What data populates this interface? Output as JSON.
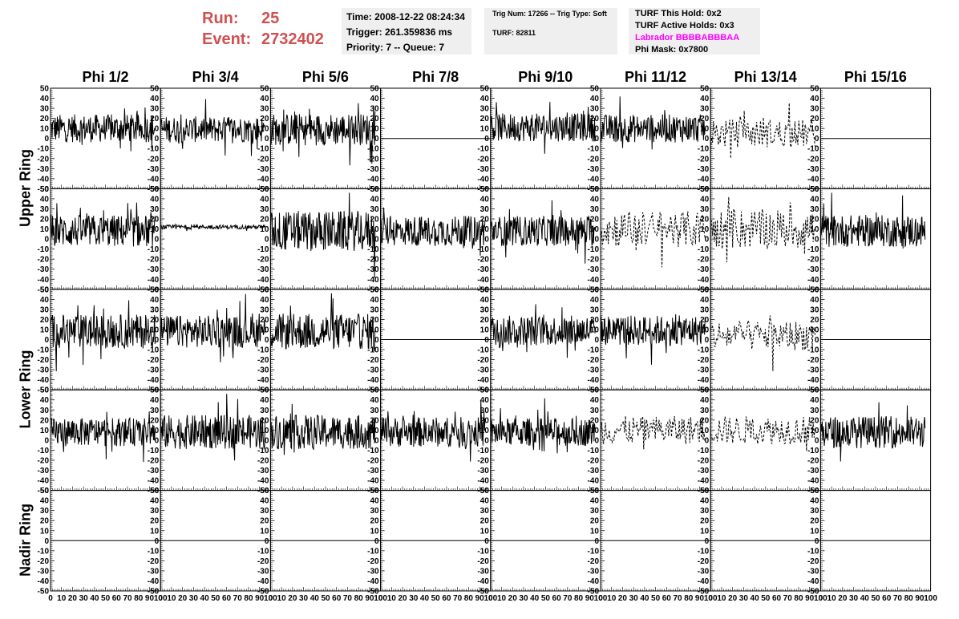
{
  "header": {
    "run_label": "Run:",
    "run_value": "25",
    "event_label": "Event:",
    "event_value": "2732402",
    "time": "Time: 2008-12-22 08:24:34",
    "trigger": "Trigger: 261.359836 ms",
    "priority": "Priority: 7 -- Queue: 7",
    "trig_num": "Trig Num: 17266 -- Trig Type: Soft",
    "turf": "TURF: 82811",
    "turf_this_hold": "TURF This Hold: 0x2",
    "turf_active_holds": "TURF Active Holds: 0x3",
    "labrador": "Labrador BBBBABBBAA",
    "phi_mask": "Phi Mask: 0x7800",
    "labrador_color": "#ff00ff",
    "run_color": "#d05050"
  },
  "chart_data": {
    "type": "line",
    "columns": [
      "Phi 1/2",
      "Phi 3/4",
      "Phi 5/6",
      "Phi 7/8",
      "Phi 9/10",
      "Phi 11/12",
      "Phi 13/14",
      "Phi 15/16"
    ],
    "row_groups": [
      {
        "label": "Upper Ring",
        "rows": [
          0,
          1
        ]
      },
      {
        "label": "Lower Ring",
        "rows": [
          2,
          3
        ]
      },
      {
        "label": "Nadir Ring",
        "rows": [
          4
        ]
      }
    ],
    "ylim": [
      -50,
      50
    ],
    "y_ticks": [
      "50",
      "40",
      "30",
      "20",
      "10",
      "0",
      "-10",
      "-20",
      "-30",
      "-40",
      "-50"
    ],
    "xlim": [
      0,
      100
    ],
    "x_ticks": [
      "0",
      "10",
      "20",
      "30",
      "40",
      "50",
      "60",
      "70",
      "80",
      "90",
      "100"
    ],
    "panels": [
      [
        {
          "style": "solid",
          "amp": 14,
          "offset": 10
        },
        {
          "style": "solid",
          "amp": 13,
          "offset": 9
        },
        {
          "style": "solid",
          "amp": 16,
          "offset": 9
        },
        {
          "style": "flat",
          "amp": 0,
          "offset": 0
        },
        {
          "style": "solid",
          "amp": 14,
          "offset": 11
        },
        {
          "style": "solid",
          "amp": 14,
          "offset": 10
        },
        {
          "style": "dashed",
          "amp": 14,
          "offset": 5
        },
        {
          "style": "flat",
          "amp": 0,
          "offset": 0
        }
      ],
      [
        {
          "style": "solid",
          "amp": 16,
          "offset": 8
        },
        {
          "style": "quiet",
          "amp": 2,
          "offset": 12
        },
        {
          "style": "solid",
          "amp": 20,
          "offset": 8
        },
        {
          "style": "solid",
          "amp": 15,
          "offset": 8
        },
        {
          "style": "solid",
          "amp": 15,
          "offset": 8
        },
        {
          "style": "dashed",
          "amp": 18,
          "offset": 10
        },
        {
          "style": "dashed",
          "amp": 20,
          "offset": 10
        },
        {
          "style": "solid",
          "amp": 16,
          "offset": 8
        }
      ],
      [
        {
          "style": "solid",
          "amp": 17,
          "offset": 8
        },
        {
          "style": "solid",
          "amp": 16,
          "offset": 8
        },
        {
          "style": "solid",
          "amp": 18,
          "offset": 8
        },
        {
          "style": "flat",
          "amp": 0,
          "offset": 0
        },
        {
          "style": "solid",
          "amp": 15,
          "offset": 9
        },
        {
          "style": "solid",
          "amp": 15,
          "offset": 9
        },
        {
          "style": "dashed",
          "amp": 15,
          "offset": 4
        },
        {
          "style": "flat",
          "amp": 0,
          "offset": 0
        }
      ],
      [
        {
          "style": "solid",
          "amp": 14,
          "offset": 8
        },
        {
          "style": "solid",
          "amp": 17,
          "offset": 8
        },
        {
          "style": "solid",
          "amp": 17,
          "offset": 8
        },
        {
          "style": "solid",
          "amp": 15,
          "offset": 8
        },
        {
          "style": "solid",
          "amp": 14,
          "offset": 8
        },
        {
          "style": "dashed",
          "amp": 14,
          "offset": 10
        },
        {
          "style": "dashed",
          "amp": 14,
          "offset": 10
        },
        {
          "style": "solid",
          "amp": 16,
          "offset": 8
        }
      ],
      [
        {
          "style": "flat",
          "amp": 0,
          "offset": 0
        },
        {
          "style": "flat",
          "amp": 0,
          "offset": 0
        },
        {
          "style": "flat",
          "amp": 0,
          "offset": 0
        },
        {
          "style": "flat",
          "amp": 0,
          "offset": 0
        },
        {
          "style": "flat",
          "amp": 0,
          "offset": 0
        },
        {
          "style": "flat",
          "amp": 0,
          "offset": 0
        },
        {
          "style": "flat",
          "amp": 0,
          "offset": 0
        },
        {
          "style": "flat",
          "amp": 0,
          "offset": 0
        }
      ]
    ]
  }
}
